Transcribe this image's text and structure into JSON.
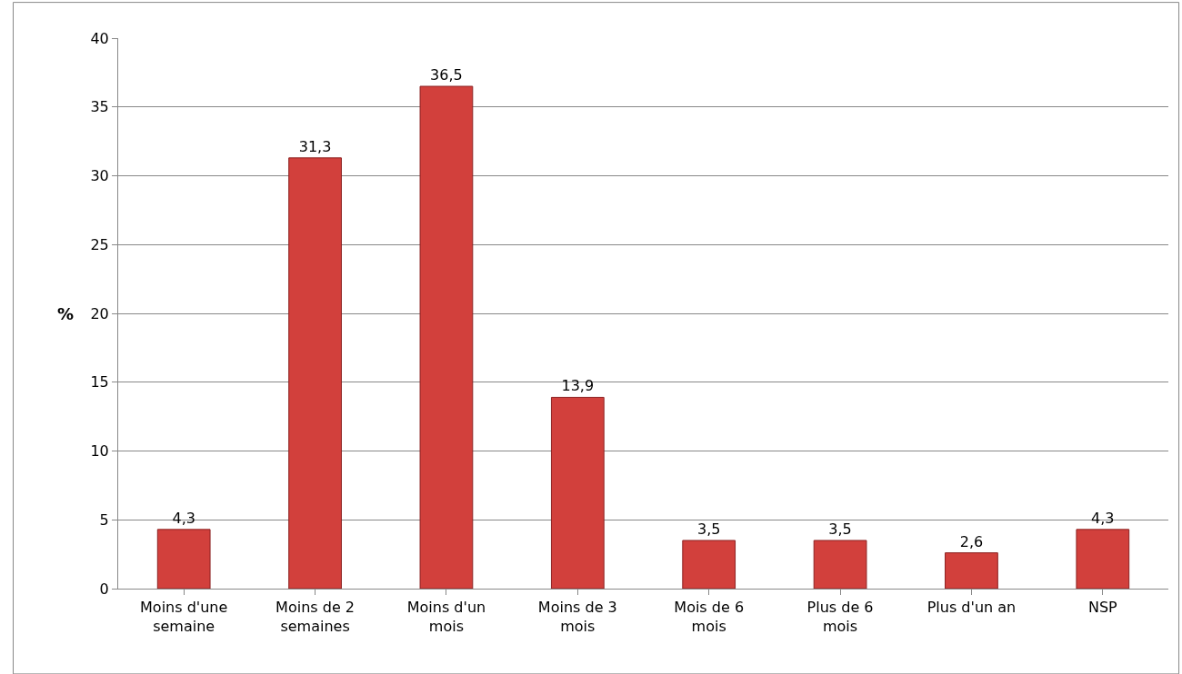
{
  "chart_data": {
    "type": "bar",
    "ylabel": "%",
    "categories": [
      "Moins d'une semaine",
      "Moins de 2 semaines",
      "Moins d'un mois",
      "Moins de 3 mois",
      "Mois de 6 mois",
      "Plus de 6 mois",
      "Plus d'un an",
      "NSP"
    ],
    "values": [
      4.3,
      31.3,
      36.5,
      13.9,
      3.5,
      3.5,
      2.6,
      4.3
    ],
    "value_labels": [
      "4,3",
      "31,3",
      "36,5",
      "13,9",
      "3,5",
      "3,5",
      "2,6",
      "4,3"
    ],
    "color": "#d2403c",
    "ylim": [
      0,
      40
    ],
    "yticks": [
      0,
      5,
      10,
      15,
      20,
      25,
      30,
      35,
      40
    ],
    "grid": "y",
    "legend": false
  }
}
